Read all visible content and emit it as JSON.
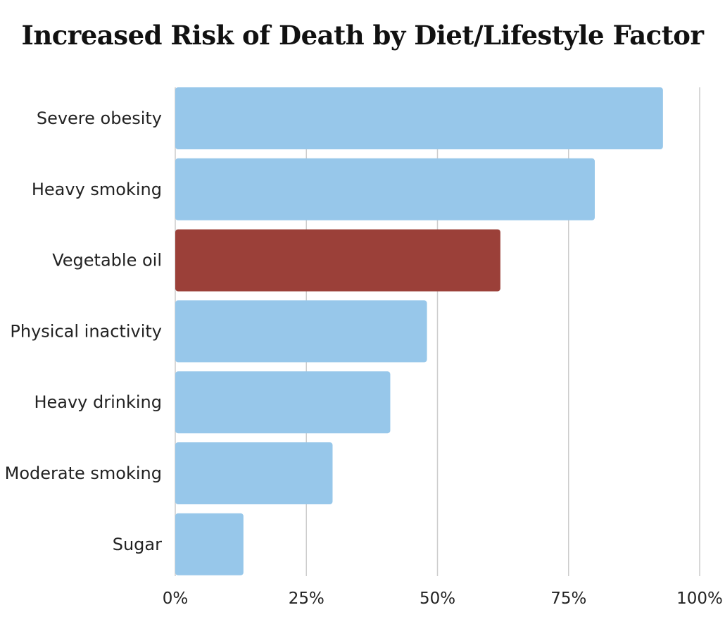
{
  "chart_data": {
    "type": "bar",
    "orientation": "horizontal",
    "title": "Increased Risk of Death by Diet/Lifestyle Factor",
    "xlabel": "",
    "ylabel": "",
    "categories": [
      "Severe obesity",
      "Heavy smoking",
      "Vegetable oil",
      "Physical inactivity",
      "Heavy drinking",
      "Moderate smoking",
      "Sugar"
    ],
    "values": [
      93,
      80,
      62,
      48,
      41,
      30,
      13
    ],
    "highlight": "Vegetable oil",
    "xlim": [
      0,
      100
    ],
    "xticks": [
      0,
      25,
      50,
      75,
      100
    ],
    "xtick_labels": [
      "0%",
      "25%",
      "50%",
      "75%",
      "100%"
    ],
    "grid": true,
    "colors": {
      "default": "#97c7ea",
      "highlight": "#9b4039",
      "grid": "#cccccc"
    }
  }
}
